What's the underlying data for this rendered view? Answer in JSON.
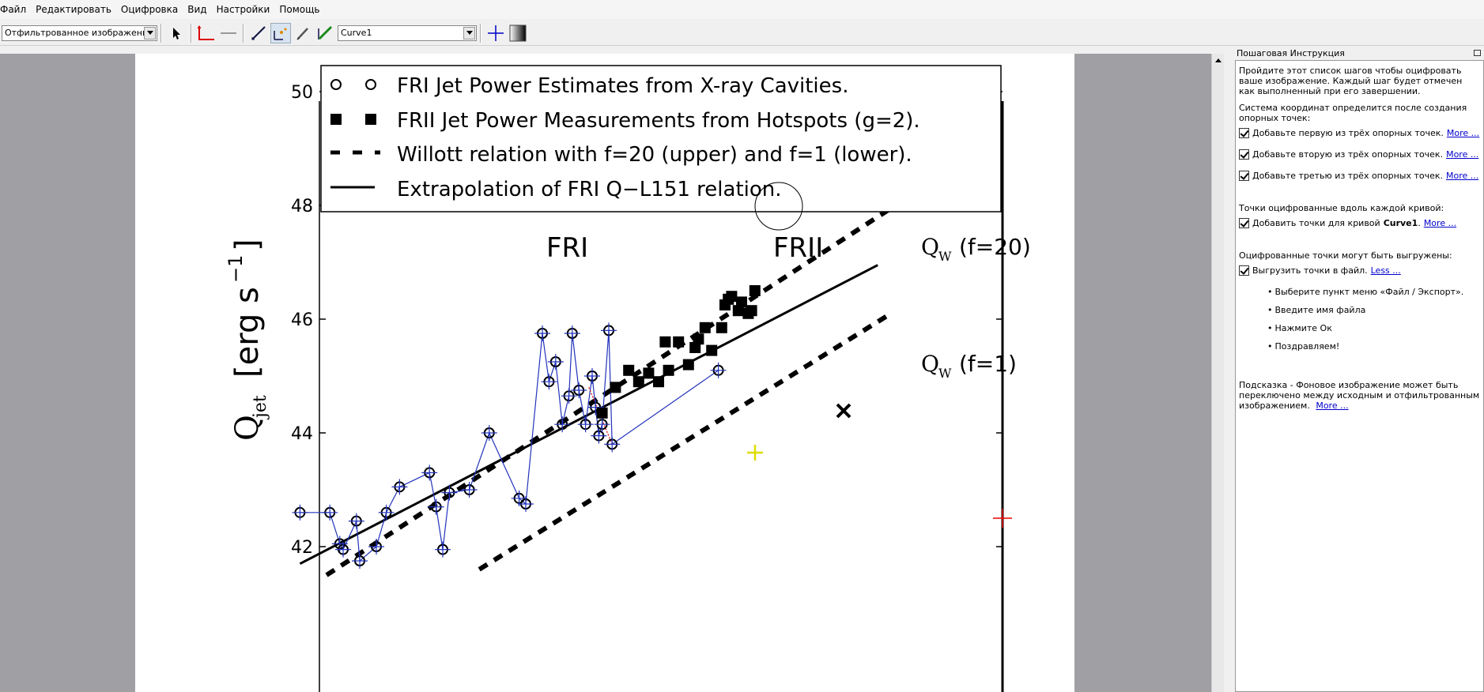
{
  "menu": [
    "Файл",
    "Редактировать",
    "Оцифровка",
    "Вид",
    "Настройки",
    "Помощь"
  ],
  "toolbar": {
    "view_select": "Отфильтрованное изображение",
    "curve_select": "Curve1"
  },
  "chart": {
    "legend": [
      "FRI Jet Power Estimates from X-ray Cavities.",
      "FRII Jet Power Measurements from Hotspots (g=2).",
      "Willott relation with f=20 (upper) and f=1 (lower).",
      "Extrapolation of FRI Q−L151 relation."
    ],
    "y_axis_label": "Q",
    "y_axis_label_sub": "jet",
    "y_axis_unit": "[erg s",
    "y_axis_unit_sup": "−1",
    "y_axis_unit_end": "]",
    "region_fri": "FRI",
    "region_frii": "FRII",
    "upper_line_label": "(f=20)",
    "lower_line_label": "(f=1)",
    "line_label_q": "Q",
    "line_label_sub": "W",
    "y_ticks": [
      "50",
      "48",
      "46",
      "44",
      "42"
    ]
  },
  "chart_data": {
    "type": "scatter",
    "y_ticks": [
      42,
      44,
      46,
      48,
      50
    ],
    "ylim": [
      41.5,
      50.5
    ],
    "xlim": [
      0,
      10
    ],
    "series": [
      {
        "name": "FRI Jet Power Estimates from X-ray Cavities.",
        "x": [
          0.1,
          0.55,
          0.7,
          0.75,
          0.95,
          1.0,
          1.25,
          1.4,
          1.6,
          2.05,
          2.15,
          2.25,
          2.35,
          2.65,
          2.95,
          3.4,
          3.5,
          3.75,
          3.85,
          3.95,
          4.05,
          4.15,
          4.2,
          4.3,
          4.4,
          4.5,
          4.55,
          4.6,
          4.65,
          4.75,
          4.8,
          6.4
        ],
        "y": [
          42.6,
          42.6,
          42.05,
          41.95,
          42.45,
          41.75,
          42.0,
          42.6,
          43.05,
          43.3,
          42.7,
          41.95,
          42.95,
          43.0,
          44.0,
          42.85,
          42.75,
          45.75,
          44.9,
          45.25,
          44.15,
          44.65,
          45.75,
          44.75,
          44.15,
          45.0,
          44.45,
          43.95,
          44.15,
          45.8,
          43.8,
          45.1
        ]
      },
      {
        "name": "FRII Jet Power Measurements from Hotspots (g=2).",
        "x": [
          4.65,
          4.85,
          5.05,
          5.2,
          5.35,
          5.5,
          5.6,
          5.65,
          5.8,
          5.95,
          6.05,
          6.1,
          6.2,
          6.3,
          6.45,
          6.5,
          6.55,
          6.6,
          6.7,
          6.75,
          6.85,
          6.9,
          6.95
        ],
        "y": [
          44.35,
          44.8,
          45.1,
          44.9,
          45.05,
          44.9,
          45.6,
          45.1,
          45.6,
          45.2,
          45.5,
          45.65,
          45.85,
          45.45,
          45.85,
          46.25,
          46.35,
          46.4,
          46.15,
          46.3,
          46.1,
          46.15,
          46.5
        ]
      },
      {
        "name": "Willott relation with f=20 (upper) and f=1 (lower).",
        "x": [
          0.5,
          9.0
        ],
        "y": [
          41.5,
          47.95
        ]
      },
      {
        "name": "Willott relation f=1 (lower)",
        "x": [
          2.8,
          9.0
        ],
        "y": [
          41.6,
          46.1
        ]
      },
      {
        "name": "Extrapolation of FRI Q−L151 relation.",
        "x": [
          0.1,
          8.8
        ],
        "y": [
          41.7,
          46.95
        ]
      }
    ]
  },
  "panel": {
    "title": "Пошаговая Инструкция",
    "intro": "Пройдите этот список шагов чтобы оцифровать ваше изображение. Каждый шаг будет отмечен как выполненный при его завершении.",
    "coord_text": "Система координат определится после создания опорных точек:",
    "step1": "Добавьте первую из трёх опорных точек.",
    "step2": "Добавьте вторую из трёх опорных точек.",
    "step3": "Добавьте третью из трёх опорных точек.",
    "curve_text": "Точки оцифрованные вдоль каждой кривой:",
    "step4_prefix": "Добавить точки для кривой",
    "step4_curve": "Curve1",
    "export_text": "Оцифрованные точки могут быть выгружены:",
    "step5": "Выгрузить точки в файл.",
    "more": "More ...",
    "less": "Less ...",
    "bullets": [
      "Выберите пункт меню «Файл / Экспорт».",
      "Введите имя файла",
      "Нажмите Ок",
      "Поздравляем!"
    ],
    "hint": "Подсказка - Фоновое изображение может быть переключено между исходным и отфильтрованным изображением."
  }
}
